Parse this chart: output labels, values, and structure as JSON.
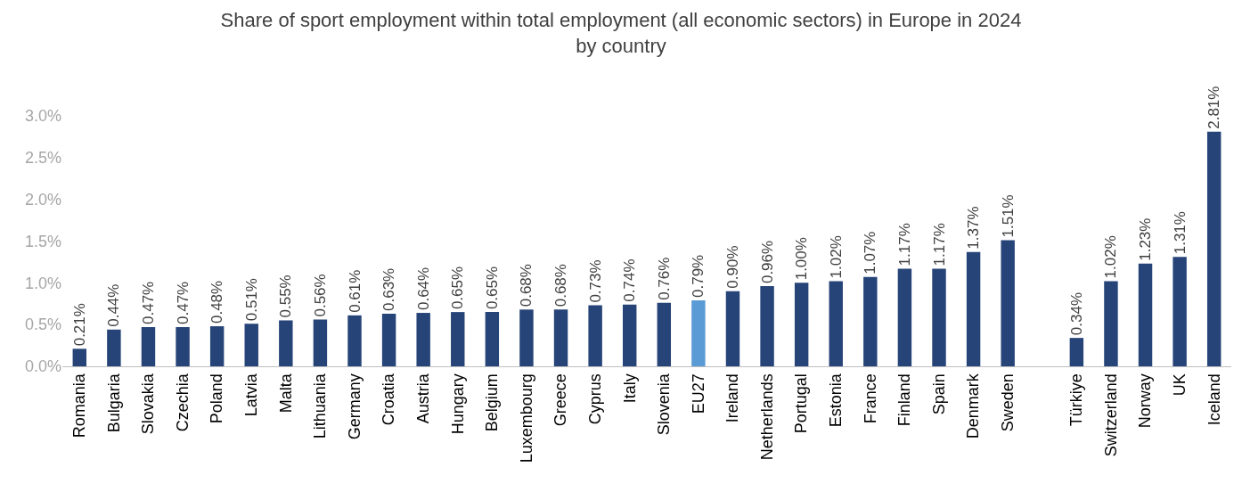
{
  "chart_data": {
    "type": "bar",
    "title": "Share of sport employment within total employment (all economic sectors) in Europe in 2024\nby country",
    "categories": [
      "Romania",
      "Bulgaria",
      "Slovakia",
      "Czechia",
      "Poland",
      "Latvia",
      "Malta",
      "Lithuania",
      "Germany",
      "Croatia",
      "Austria",
      "Hungary",
      "Belgium",
      "Luxembourg",
      "Greece",
      "Cyprus",
      "Italy",
      "Slovenia",
      "EU27",
      "Ireland",
      "Netherlands",
      "Portugal",
      "Estonia",
      "France",
      "Finland",
      "Spain",
      "Denmark",
      "Sweden",
      null,
      "Türkiye",
      "Switzerland",
      "Norway",
      "UK",
      "Iceland"
    ],
    "values": [
      0.21,
      0.44,
      0.47,
      0.47,
      0.48,
      0.51,
      0.55,
      0.56,
      0.61,
      0.63,
      0.64,
      0.65,
      0.65,
      0.68,
      0.68,
      0.73,
      0.74,
      0.76,
      0.79,
      0.9,
      0.96,
      1.0,
      1.02,
      1.07,
      1.17,
      1.17,
      1.37,
      1.51,
      null,
      0.34,
      1.02,
      1.23,
      1.31,
      2.81
    ],
    "value_labels": [
      "0.21%",
      "0.44%",
      "0.47%",
      "0.47%",
      "0.48%",
      "0.51%",
      "0.55%",
      "0.56%",
      "0.61%",
      "0.63%",
      "0.64%",
      "0.65%",
      "0.65%",
      "0.68%",
      "0.68%",
      "0.73%",
      "0.74%",
      "0.76%",
      "0.79%",
      "0.90%",
      "0.96%",
      "1.00%",
      "1.02%",
      "1.07%",
      "1.17%",
      "1.17%",
      "1.37%",
      "1.51%",
      null,
      "0.34%",
      "1.02%",
      "1.23%",
      "1.31%",
      "2.81%"
    ],
    "colors": [
      "#264478",
      "#264478",
      "#264478",
      "#264478",
      "#264478",
      "#264478",
      "#264478",
      "#264478",
      "#264478",
      "#264478",
      "#264478",
      "#264478",
      "#264478",
      "#264478",
      "#264478",
      "#264478",
      "#264478",
      "#264478",
      "#5b9bd5",
      "#264478",
      "#264478",
      "#264478",
      "#264478",
      "#264478",
      "#264478",
      "#264478",
      "#264478",
      "#264478",
      "#264478",
      "#264478",
      "#264478",
      "#264478",
      "#264478",
      "#264478"
    ],
    "ylim": [
      0,
      3.0
    ],
    "yticks": [
      {
        "value": 0,
        "label": "0.0%"
      },
      {
        "value": 0.5,
        "label": "0.5%"
      },
      {
        "value": 1.0,
        "label": "1.0%"
      },
      {
        "value": 1.5,
        "label": "1.5%"
      },
      {
        "value": 2.0,
        "label": "2.0%"
      },
      {
        "value": 2.5,
        "label": "2.5%"
      },
      {
        "value": 3.0,
        "label": "3.0%"
      }
    ],
    "legend": false
  }
}
